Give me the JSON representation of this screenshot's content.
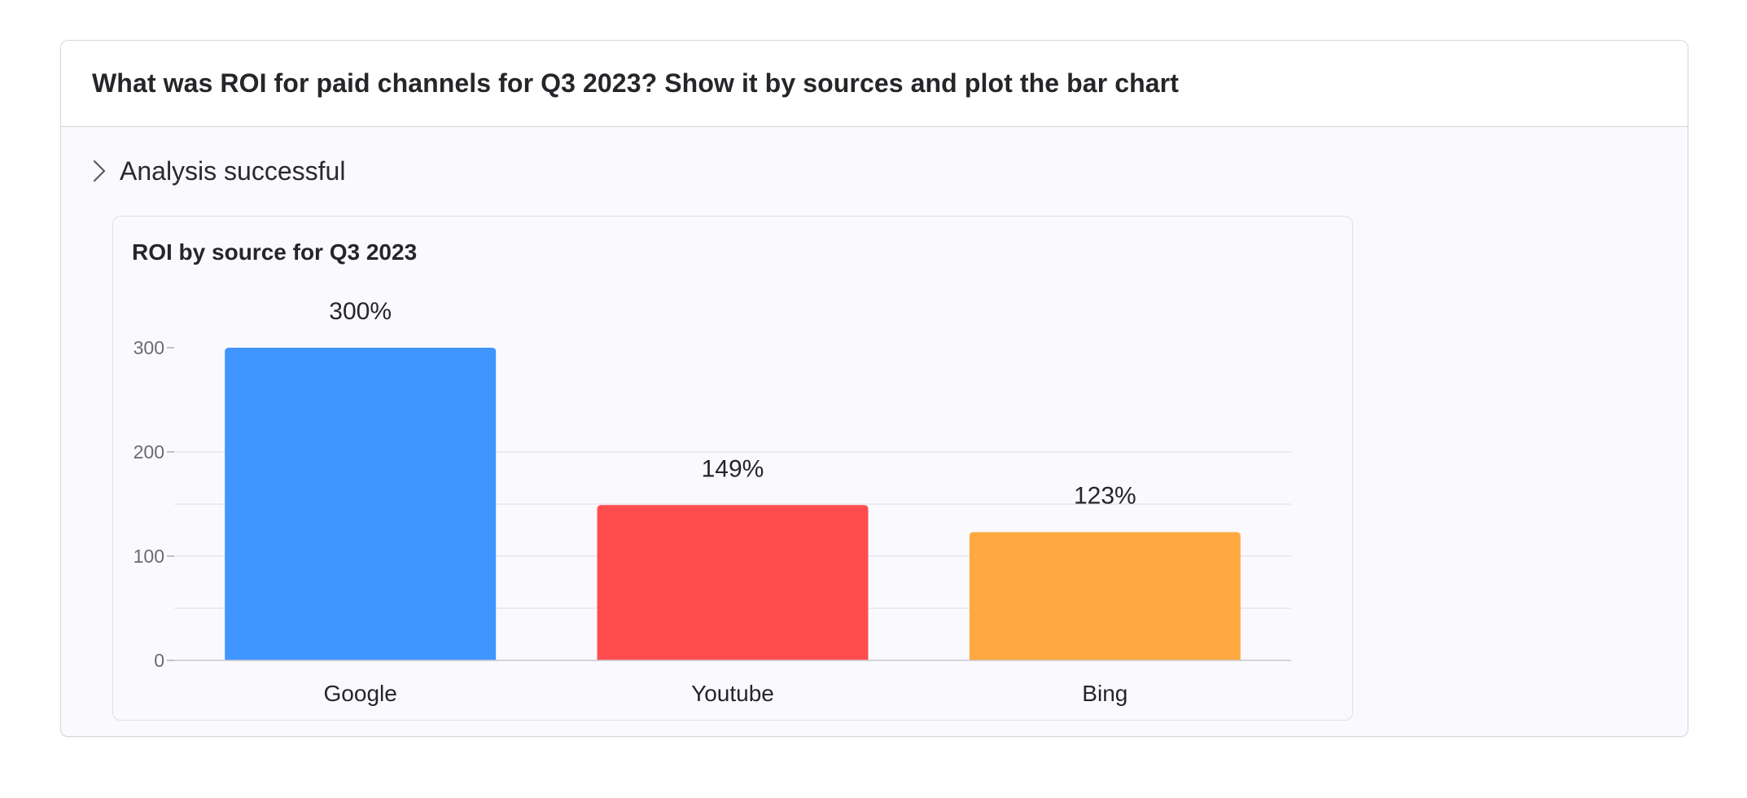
{
  "question": "What was ROI for paid channels for Q3 2023? Show it by sources and plot the bar chart",
  "status": {
    "label": "Analysis successful",
    "icon": "chevron-right-icon"
  },
  "chart_data": {
    "type": "bar",
    "title": "ROI by source for Q3 2023",
    "categories": [
      "Google",
      "Youtube",
      "Bing"
    ],
    "values": [
      300,
      149,
      123
    ],
    "data_labels": [
      "300%",
      "149%",
      "123%"
    ],
    "colors": [
      "#4096ff",
      "#ff4d4f",
      "#ffa940"
    ],
    "yticks": [
      0,
      100,
      200,
      300
    ],
    "ylim": [
      0,
      340
    ],
    "xlabel": "",
    "ylabel": "",
    "grid": true,
    "legend": "none"
  }
}
